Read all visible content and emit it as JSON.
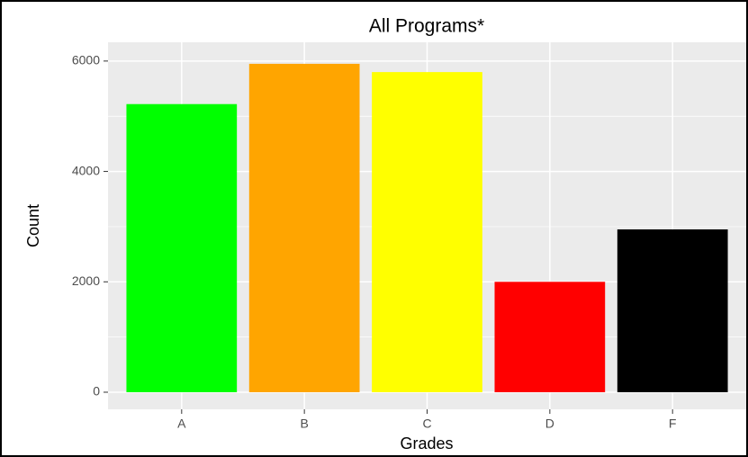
{
  "chart_data": {
    "type": "bar",
    "title": "All Programs*",
    "x_label": "Grades",
    "y_label": "Count",
    "categories": [
      "A",
      "B",
      "C",
      "D",
      "F"
    ],
    "values": [
      5220,
      5950,
      5800,
      2000,
      2950
    ],
    "colors": [
      "#00ff00",
      "#ffa500",
      "#ffff00",
      "#ff0000",
      "#000000"
    ],
    "ylim": [
      -310,
      6340
    ],
    "yticks": [
      0,
      2000,
      4000,
      6000
    ],
    "grid": true
  }
}
